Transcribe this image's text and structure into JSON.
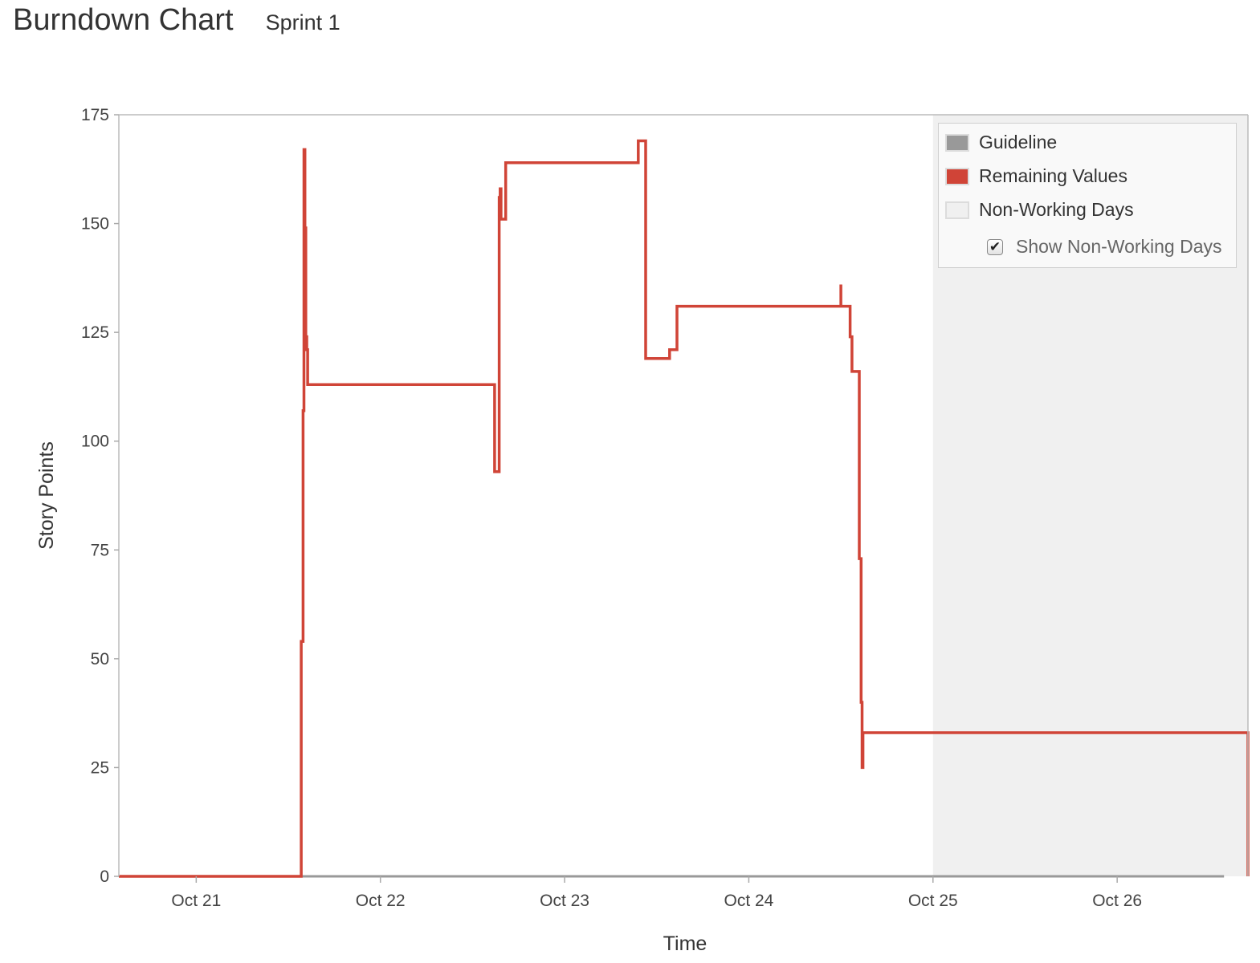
{
  "header": {
    "title": "Burndown Chart",
    "sprint": "Sprint 1"
  },
  "legend": {
    "items": [
      {
        "label": "Guideline",
        "color": "#999999"
      },
      {
        "label": "Remaining Values",
        "color": "#d04437"
      },
      {
        "label": "Non-Working Days",
        "color": "#f0f0f0"
      }
    ],
    "toggle": {
      "label": "Show Non-Working Days",
      "checked": true
    }
  },
  "chart_data": {
    "type": "line",
    "xlabel": "Time",
    "ylabel": "Story Points",
    "ylim": [
      0,
      175
    ],
    "yticks": [
      0,
      25,
      50,
      75,
      100,
      125,
      150,
      175
    ],
    "xlim": [
      -0.42,
      5.71
    ],
    "xtick_labels": [
      "Oct 21",
      "Oct 22",
      "Oct 23",
      "Oct 24",
      "Oct 25",
      "Oct 26"
    ],
    "xtick_values": [
      0,
      1,
      2,
      3,
      4,
      5
    ],
    "x_units": "days from Oct 21",
    "non_working_range": [
      4,
      5.71
    ],
    "legend_position": "top-right",
    "grid": false,
    "series": [
      {
        "name": "Guideline",
        "color": "#999999",
        "points": [
          [
            -0.42,
            0
          ],
          [
            5.58,
            0
          ]
        ]
      },
      {
        "name": "Remaining Values",
        "color": "#d04437",
        "points": [
          [
            -0.42,
            0
          ],
          [
            0.57,
            0
          ],
          [
            0.57,
            54
          ],
          [
            0.58,
            54
          ],
          [
            0.58,
            107
          ],
          [
            0.585,
            107
          ],
          [
            0.585,
            167
          ],
          [
            0.59,
            167
          ],
          [
            0.59,
            149
          ],
          [
            0.595,
            149
          ],
          [
            0.595,
            124
          ],
          [
            0.6,
            124
          ],
          [
            0.6,
            121
          ],
          [
            0.605,
            121
          ],
          [
            0.605,
            113
          ],
          [
            1.62,
            113
          ],
          [
            1.62,
            93
          ],
          [
            1.645,
            93
          ],
          [
            1.645,
            156
          ],
          [
            1.65,
            156
          ],
          [
            1.65,
            158
          ],
          [
            1.655,
            158
          ],
          [
            1.655,
            151
          ],
          [
            1.68,
            151
          ],
          [
            1.68,
            164
          ],
          [
            2.4,
            164
          ],
          [
            2.4,
            169
          ],
          [
            2.44,
            169
          ],
          [
            2.44,
            119
          ],
          [
            2.57,
            119
          ],
          [
            2.57,
            121
          ],
          [
            2.61,
            121
          ],
          [
            2.61,
            131
          ],
          [
            3.5,
            131
          ],
          [
            3.5,
            136
          ],
          [
            3.5,
            131
          ],
          [
            3.55,
            131
          ],
          [
            3.55,
            124
          ],
          [
            3.56,
            124
          ],
          [
            3.56,
            116
          ],
          [
            3.6,
            116
          ],
          [
            3.6,
            73
          ],
          [
            3.61,
            73
          ],
          [
            3.61,
            40
          ],
          [
            3.615,
            40
          ],
          [
            3.615,
            25
          ],
          [
            3.62,
            25
          ],
          [
            3.62,
            33
          ],
          [
            5.71,
            33
          ],
          [
            5.71,
            0
          ]
        ]
      }
    ]
  }
}
